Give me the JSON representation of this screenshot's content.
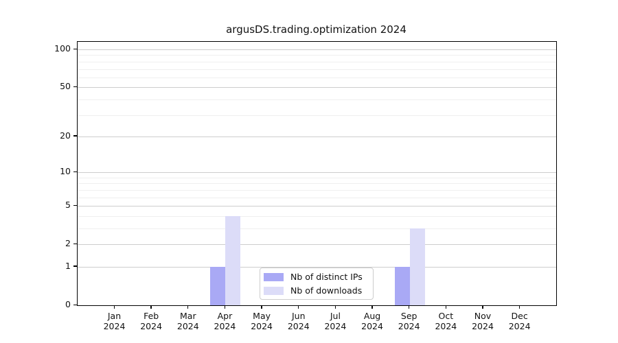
{
  "chart_data": {
    "type": "bar",
    "title": "argusDS.trading.optimization 2024",
    "year_label": "2024",
    "categories": [
      "Jan",
      "Feb",
      "Mar",
      "Apr",
      "May",
      "Jun",
      "Jul",
      "Aug",
      "Sep",
      "Oct",
      "Nov",
      "Dec"
    ],
    "series": [
      {
        "name": "Nb of distinct IPs",
        "color": "#a9a9f5",
        "values": [
          0,
          0,
          0,
          1,
          0,
          0,
          0,
          0,
          1,
          0,
          0,
          0
        ]
      },
      {
        "name": "Nb of downloads",
        "color": "#dcdcf8",
        "values": [
          0,
          0,
          0,
          4,
          0,
          0,
          0,
          0,
          3,
          0,
          0,
          0
        ]
      }
    ],
    "yscale": "log1p",
    "ylim": [
      0,
      115
    ],
    "ytick_values": [
      0,
      1,
      2,
      5,
      10,
      20,
      50,
      100
    ],
    "ytick_labels": [
      "0",
      "1",
      "2",
      "5",
      "10",
      "20",
      "50",
      "100"
    ],
    "minor_ytick_values": [
      3,
      4,
      6,
      7,
      8,
      9,
      30,
      40,
      60,
      70,
      80,
      90
    ],
    "grid": "horizontal",
    "legend_position": "lower-center-inside",
    "colors": {
      "axis": "#000000",
      "major_grid": "#cdcdcd",
      "minor_grid": "#efefef",
      "legend_border": "#cccccc",
      "background": "#ffffff"
    }
  }
}
